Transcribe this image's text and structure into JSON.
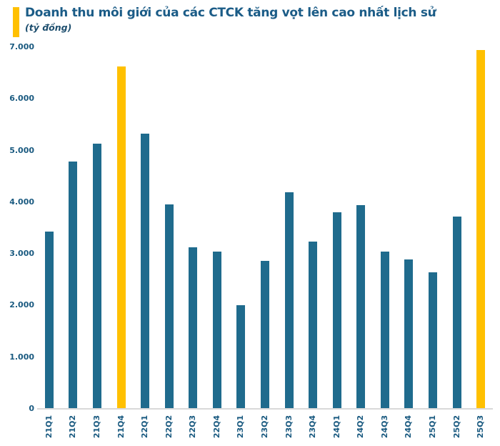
{
  "header": {
    "title": "Doanh thu môi giới của các CTCK tăng vọt lên cao nhất lịch sử",
    "subtitle": "(tỷ đồng)",
    "accent_color": "#FFC000",
    "title_color": "#1B5C87",
    "subtitle_color": "#1D4E6E"
  },
  "axis": {
    "label_color": "#1A5A80",
    "baseline_color": "#D9D9D9"
  },
  "chart_data": {
    "type": "bar",
    "title": "Doanh thu môi giới của các CTCK tăng vọt lên cao nhất lịch sử",
    "xlabel": "",
    "ylabel": "(tỷ đồng)",
    "categories": [
      "21Q1",
      "21Q2",
      "21Q3",
      "21Q4",
      "22Q1",
      "22Q2",
      "22Q3",
      "22Q4",
      "23Q1",
      "23Q2",
      "23Q3",
      "23Q4",
      "24Q1",
      "24Q2",
      "24Q3",
      "24Q4",
      "25Q1",
      "25Q2",
      "25Q3"
    ],
    "values": [
      3430,
      4790,
      5130,
      6630,
      5330,
      3950,
      3130,
      3040,
      2000,
      2860,
      4190,
      3240,
      3800,
      3940,
      3040,
      2890,
      2640,
      3720,
      6940
    ],
    "highlight_indices": [
      3,
      18
    ],
    "highlight_categories": [
      "21Q4",
      "25Q3"
    ],
    "bar_color": "#1F6B8D",
    "highlight_color": "#FFC000",
    "ylim": [
      0,
      7000
    ],
    "ytick_step": 1000,
    "ytick_labels": [
      "0",
      "1.000",
      "2.000",
      "3.000",
      "4.000",
      "5.000",
      "6.000",
      "7.000"
    ],
    "grid": false,
    "legend": "none"
  }
}
